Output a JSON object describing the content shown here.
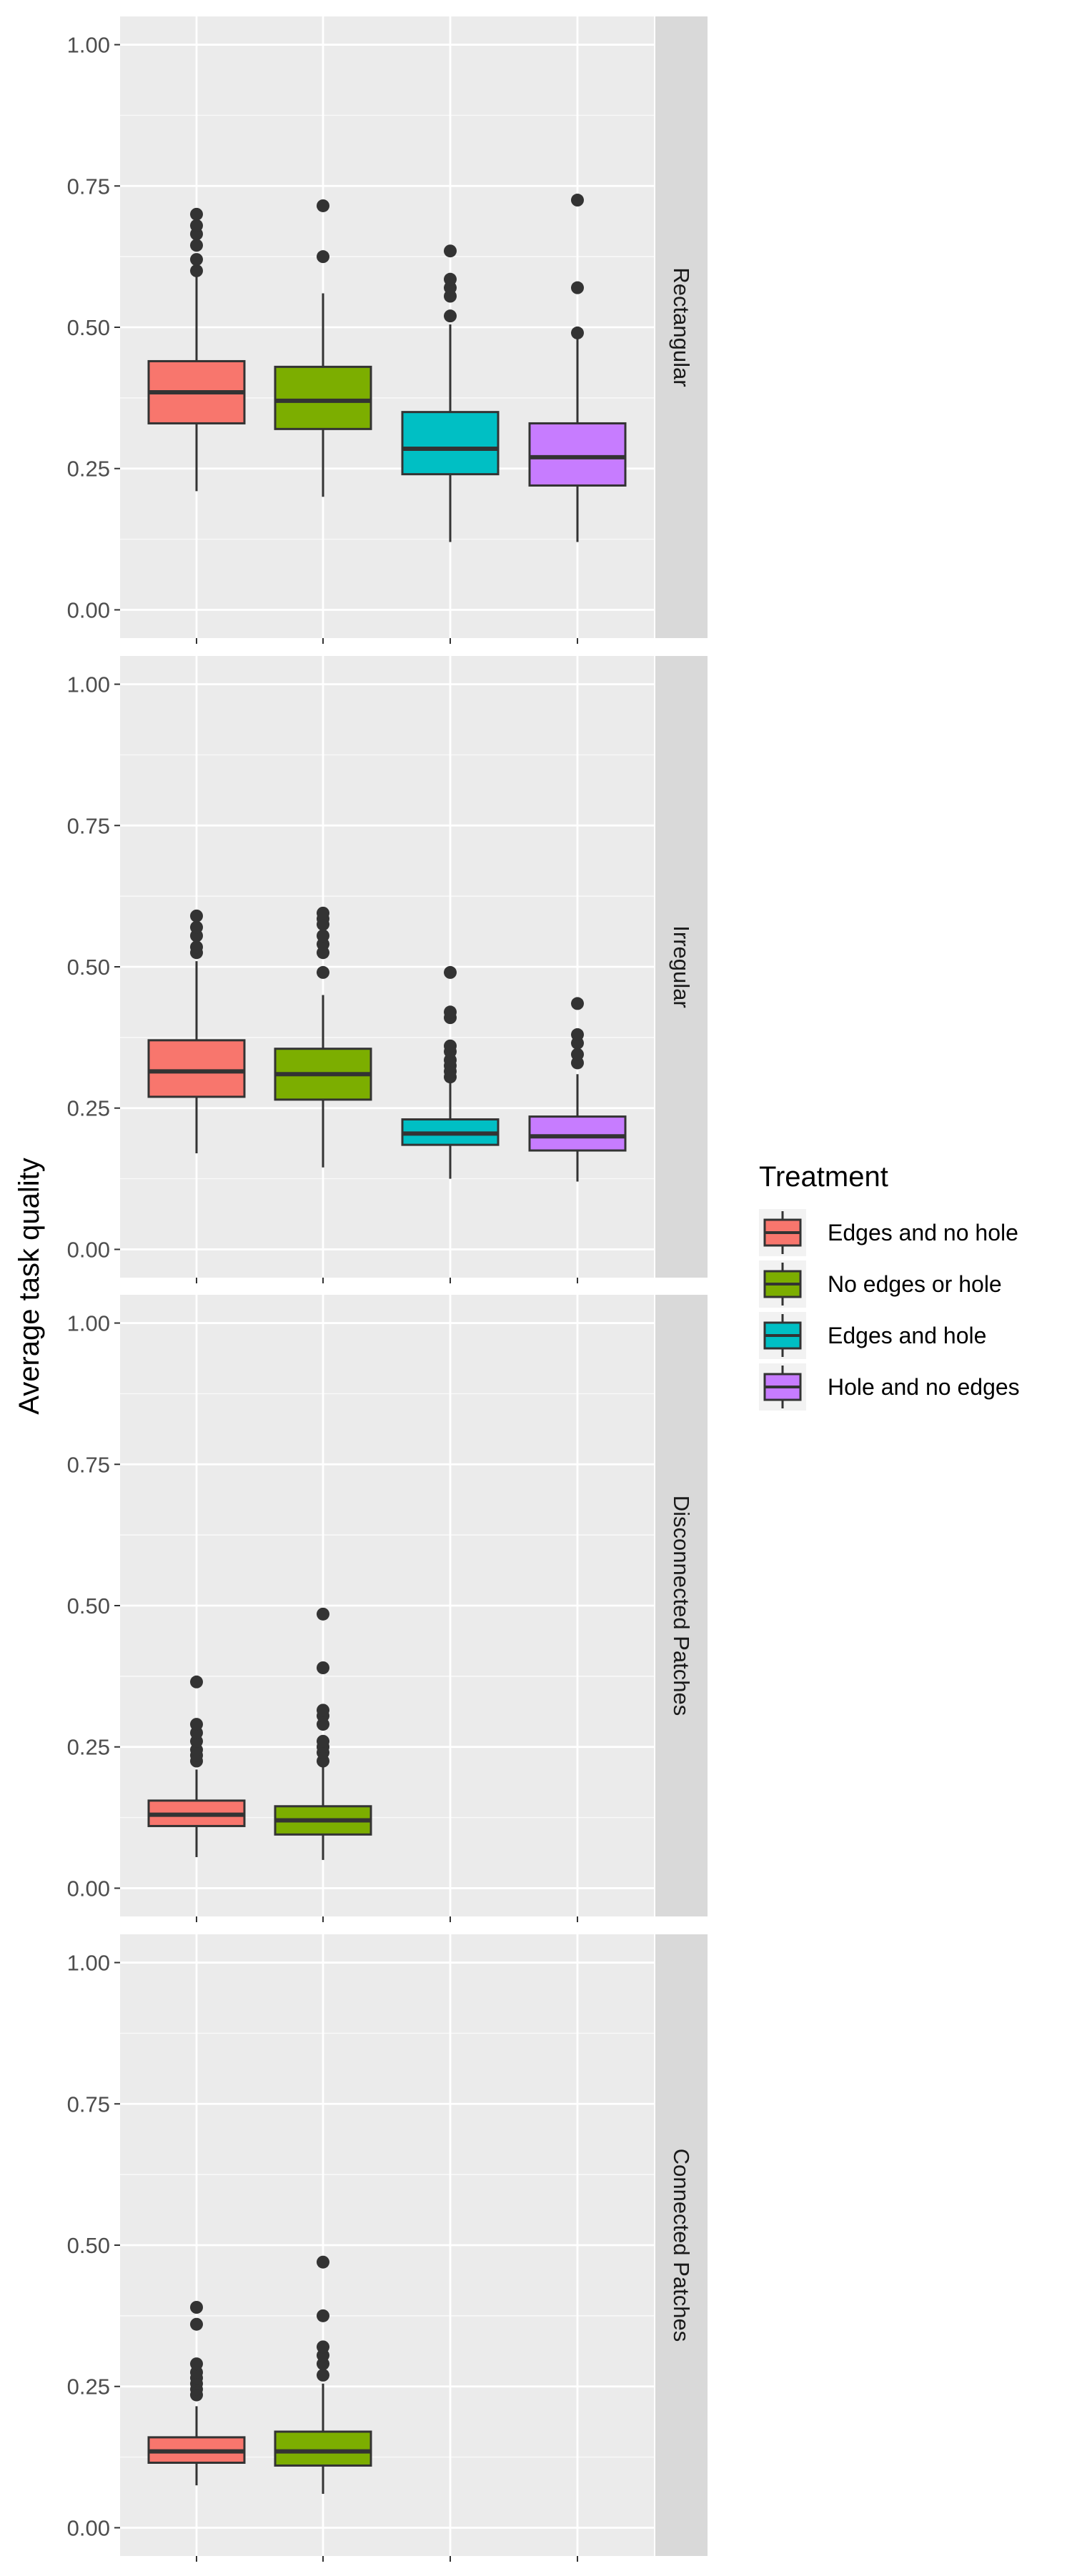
{
  "chart_data": {
    "type": "box",
    "ylabel": "Average task quality",
    "xlabel": "",
    "ylim": [
      -0.05,
      1.05
    ],
    "yticks": [
      "0.00",
      "0.25",
      "0.50",
      "0.75",
      "1.00"
    ],
    "legend": {
      "title": "Treatment",
      "placement": "right",
      "entries": [
        "Edges and no hole",
        "No edges or hole",
        "Edges and hole",
        "Hole and no edges"
      ]
    },
    "colors": {
      "Edges and no hole": "#F8766D",
      "No edges or hole": "#7CAE00",
      "Edges and hole": "#00BFC4",
      "Hole and no edges": "#C77CFF",
      "panel_bg": "#EBEBEB",
      "strip_bg": "#D9D9D9",
      "grid": "#FFFFFF",
      "outline": "#333333",
      "axis_text": "#4D4D4D"
    },
    "panels": [
      {
        "label": "Rectangular",
        "boxes": [
          {
            "group": "Edges and no hole",
            "whisker_low": 0.21,
            "q1": 0.33,
            "median": 0.385,
            "q3": 0.44,
            "whisker_high": 0.59,
            "outliers": [
              0.6,
              0.62,
              0.645,
              0.665,
              0.68,
              0.7
            ]
          },
          {
            "group": "No edges or hole",
            "whisker_low": 0.2,
            "q1": 0.32,
            "median": 0.37,
            "q3": 0.43,
            "whisker_high": 0.56,
            "outliers": [
              0.625,
              0.715
            ]
          },
          {
            "group": "Edges and hole",
            "whisker_low": 0.12,
            "q1": 0.24,
            "median": 0.285,
            "q3": 0.35,
            "whisker_high": 0.505,
            "outliers": [
              0.52,
              0.555,
              0.57,
              0.585,
              0.635
            ]
          },
          {
            "group": "Hole and no edges",
            "whisker_low": 0.12,
            "q1": 0.22,
            "median": 0.27,
            "q3": 0.33,
            "whisker_high": 0.48,
            "outliers": [
              0.49,
              0.57,
              0.725
            ]
          }
        ]
      },
      {
        "label": "Irregular",
        "boxes": [
          {
            "group": "Edges and no hole",
            "whisker_low": 0.17,
            "q1": 0.27,
            "median": 0.315,
            "q3": 0.37,
            "whisker_high": 0.51,
            "outliers": [
              0.525,
              0.535,
              0.555,
              0.57,
              0.59
            ]
          },
          {
            "group": "No edges or hole",
            "whisker_low": 0.145,
            "q1": 0.265,
            "median": 0.31,
            "q3": 0.355,
            "whisker_high": 0.45,
            "outliers": [
              0.49,
              0.525,
              0.54,
              0.555,
              0.575,
              0.585,
              0.595
            ]
          },
          {
            "group": "Edges and hole",
            "whisker_low": 0.125,
            "q1": 0.185,
            "median": 0.205,
            "q3": 0.23,
            "whisker_high": 0.295,
            "outliers": [
              0.305,
              0.315,
              0.325,
              0.335,
              0.35,
              0.36,
              0.41,
              0.42,
              0.49
            ]
          },
          {
            "group": "Hole and no edges",
            "whisker_low": 0.12,
            "q1": 0.175,
            "median": 0.2,
            "q3": 0.235,
            "whisker_high": 0.31,
            "outliers": [
              0.33,
              0.345,
              0.365,
              0.38,
              0.435
            ]
          }
        ]
      },
      {
        "label": "Disconnected Patches",
        "boxes": [
          {
            "group": "Edges and no hole",
            "whisker_low": 0.055,
            "q1": 0.11,
            "median": 0.13,
            "q3": 0.155,
            "whisker_high": 0.21,
            "outliers": [
              0.225,
              0.235,
              0.245,
              0.26,
              0.275,
              0.29,
              0.365
            ]
          },
          {
            "group": "No edges or hole",
            "whisker_low": 0.05,
            "q1": 0.095,
            "median": 0.12,
            "q3": 0.145,
            "whisker_high": 0.215,
            "outliers": [
              0.225,
              0.24,
              0.25,
              0.26,
              0.29,
              0.305,
              0.315,
              0.39,
              0.485
            ]
          }
        ]
      },
      {
        "label": "Connected Patches",
        "boxes": [
          {
            "group": "Edges and no hole",
            "whisker_low": 0.075,
            "q1": 0.115,
            "median": 0.135,
            "q3": 0.16,
            "whisker_high": 0.215,
            "outliers": [
              0.235,
              0.245,
              0.255,
              0.265,
              0.275,
              0.29,
              0.36,
              0.39
            ]
          },
          {
            "group": "No edges or hole",
            "whisker_low": 0.06,
            "q1": 0.11,
            "median": 0.135,
            "q3": 0.17,
            "whisker_high": 0.255,
            "outliers": [
              0.27,
              0.29,
              0.305,
              0.32,
              0.375,
              0.47
            ]
          }
        ]
      }
    ]
  }
}
